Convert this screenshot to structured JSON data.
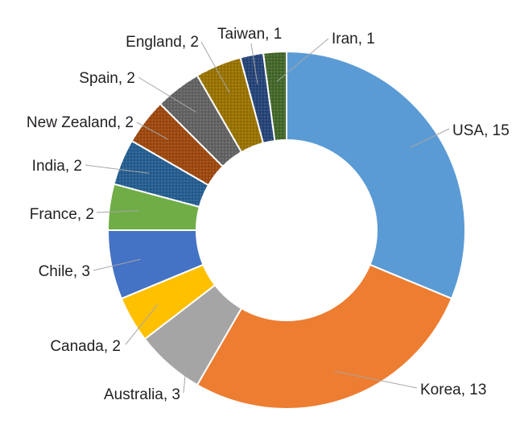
{
  "chart_data": {
    "type": "donut",
    "title": "",
    "start_angle_deg": 0,
    "direction": "clockwise",
    "slices": [
      {
        "label": "USA",
        "value": 15,
        "color": "#5b9bd5",
        "text": "USA, 15"
      },
      {
        "label": "Korea",
        "value": 13,
        "color": "#ed7d31",
        "text": "Korea, 13"
      },
      {
        "label": "Australia",
        "value": 3,
        "color": "#a5a5a5",
        "text": "Australia, 3"
      },
      {
        "label": "Canada",
        "value": 2,
        "color": "#ffc000",
        "text": "Canada, 2"
      },
      {
        "label": "Chile",
        "value": 3,
        "color": "#4472c4",
        "text": "Chile, 3"
      },
      {
        "label": "France",
        "value": 2,
        "color": "#70ad47",
        "text": "France, 2"
      },
      {
        "label": "India",
        "value": 2,
        "color": "#255e91",
        "text": "India, 2"
      },
      {
        "label": "New Zealand",
        "value": 2,
        "color": "#9e480e",
        "text": "New Zealand, 2"
      },
      {
        "label": "Spain",
        "value": 2,
        "color": "#636363",
        "text": "Spain, 2"
      },
      {
        "label": "England",
        "value": 2,
        "color": "#997300",
        "text": "England, 2"
      },
      {
        "label": "Taiwan",
        "value": 1,
        "color": "#264478",
        "text": "Taiwan, 1"
      },
      {
        "label": "Iran",
        "value": 1,
        "color": "#43682b",
        "text": "Iran, 1"
      }
    ]
  }
}
